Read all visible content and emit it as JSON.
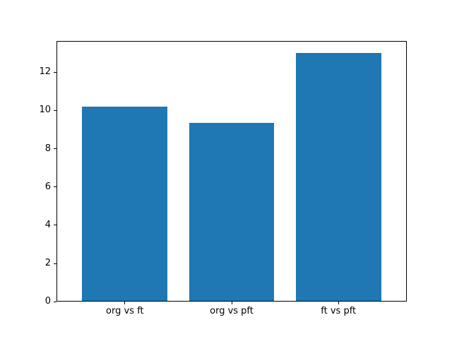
{
  "chart_data": {
    "type": "bar",
    "categories": [
      "org vs ft",
      "org vs pft",
      "ft vs pft"
    ],
    "values": [
      10.2,
      9.35,
      13.0
    ],
    "yticks": [
      0,
      2,
      4,
      6,
      8,
      10,
      12
    ],
    "ylim": [
      0,
      13.65
    ],
    "bar_color": "#1f77b4",
    "background_color": "#ffffff",
    "axis_color": "#000000",
    "grid": false,
    "legend": "none",
    "bar_width_fraction": 0.8
  }
}
